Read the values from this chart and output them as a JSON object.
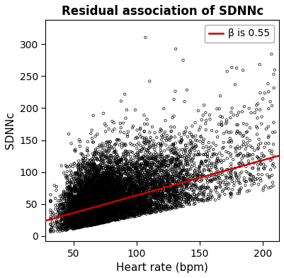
{
  "title": "Residual association of SDNNc",
  "xlabel": "Heart rate (bpm)",
  "ylabel": "SDNNc",
  "legend_label": "β is 0.55",
  "beta": 0.55,
  "line_intercept": 8.5,
  "xlim": [
    28,
    213
  ],
  "ylim": [
    -8,
    338
  ],
  "xticks": [
    50,
    100,
    150,
    200
  ],
  "yticks": [
    0,
    50,
    100,
    150,
    200,
    250,
    300
  ],
  "n_points": 9000,
  "seed": 123,
  "scatter_color": "#000000",
  "line_color": "#cc0000",
  "bg_color": "#ffffff",
  "panel_bg": "#ffffff",
  "marker_size": 6,
  "marker_lw": 0.5,
  "title_fontsize": 12,
  "label_fontsize": 11,
  "tick_fontsize": 10
}
